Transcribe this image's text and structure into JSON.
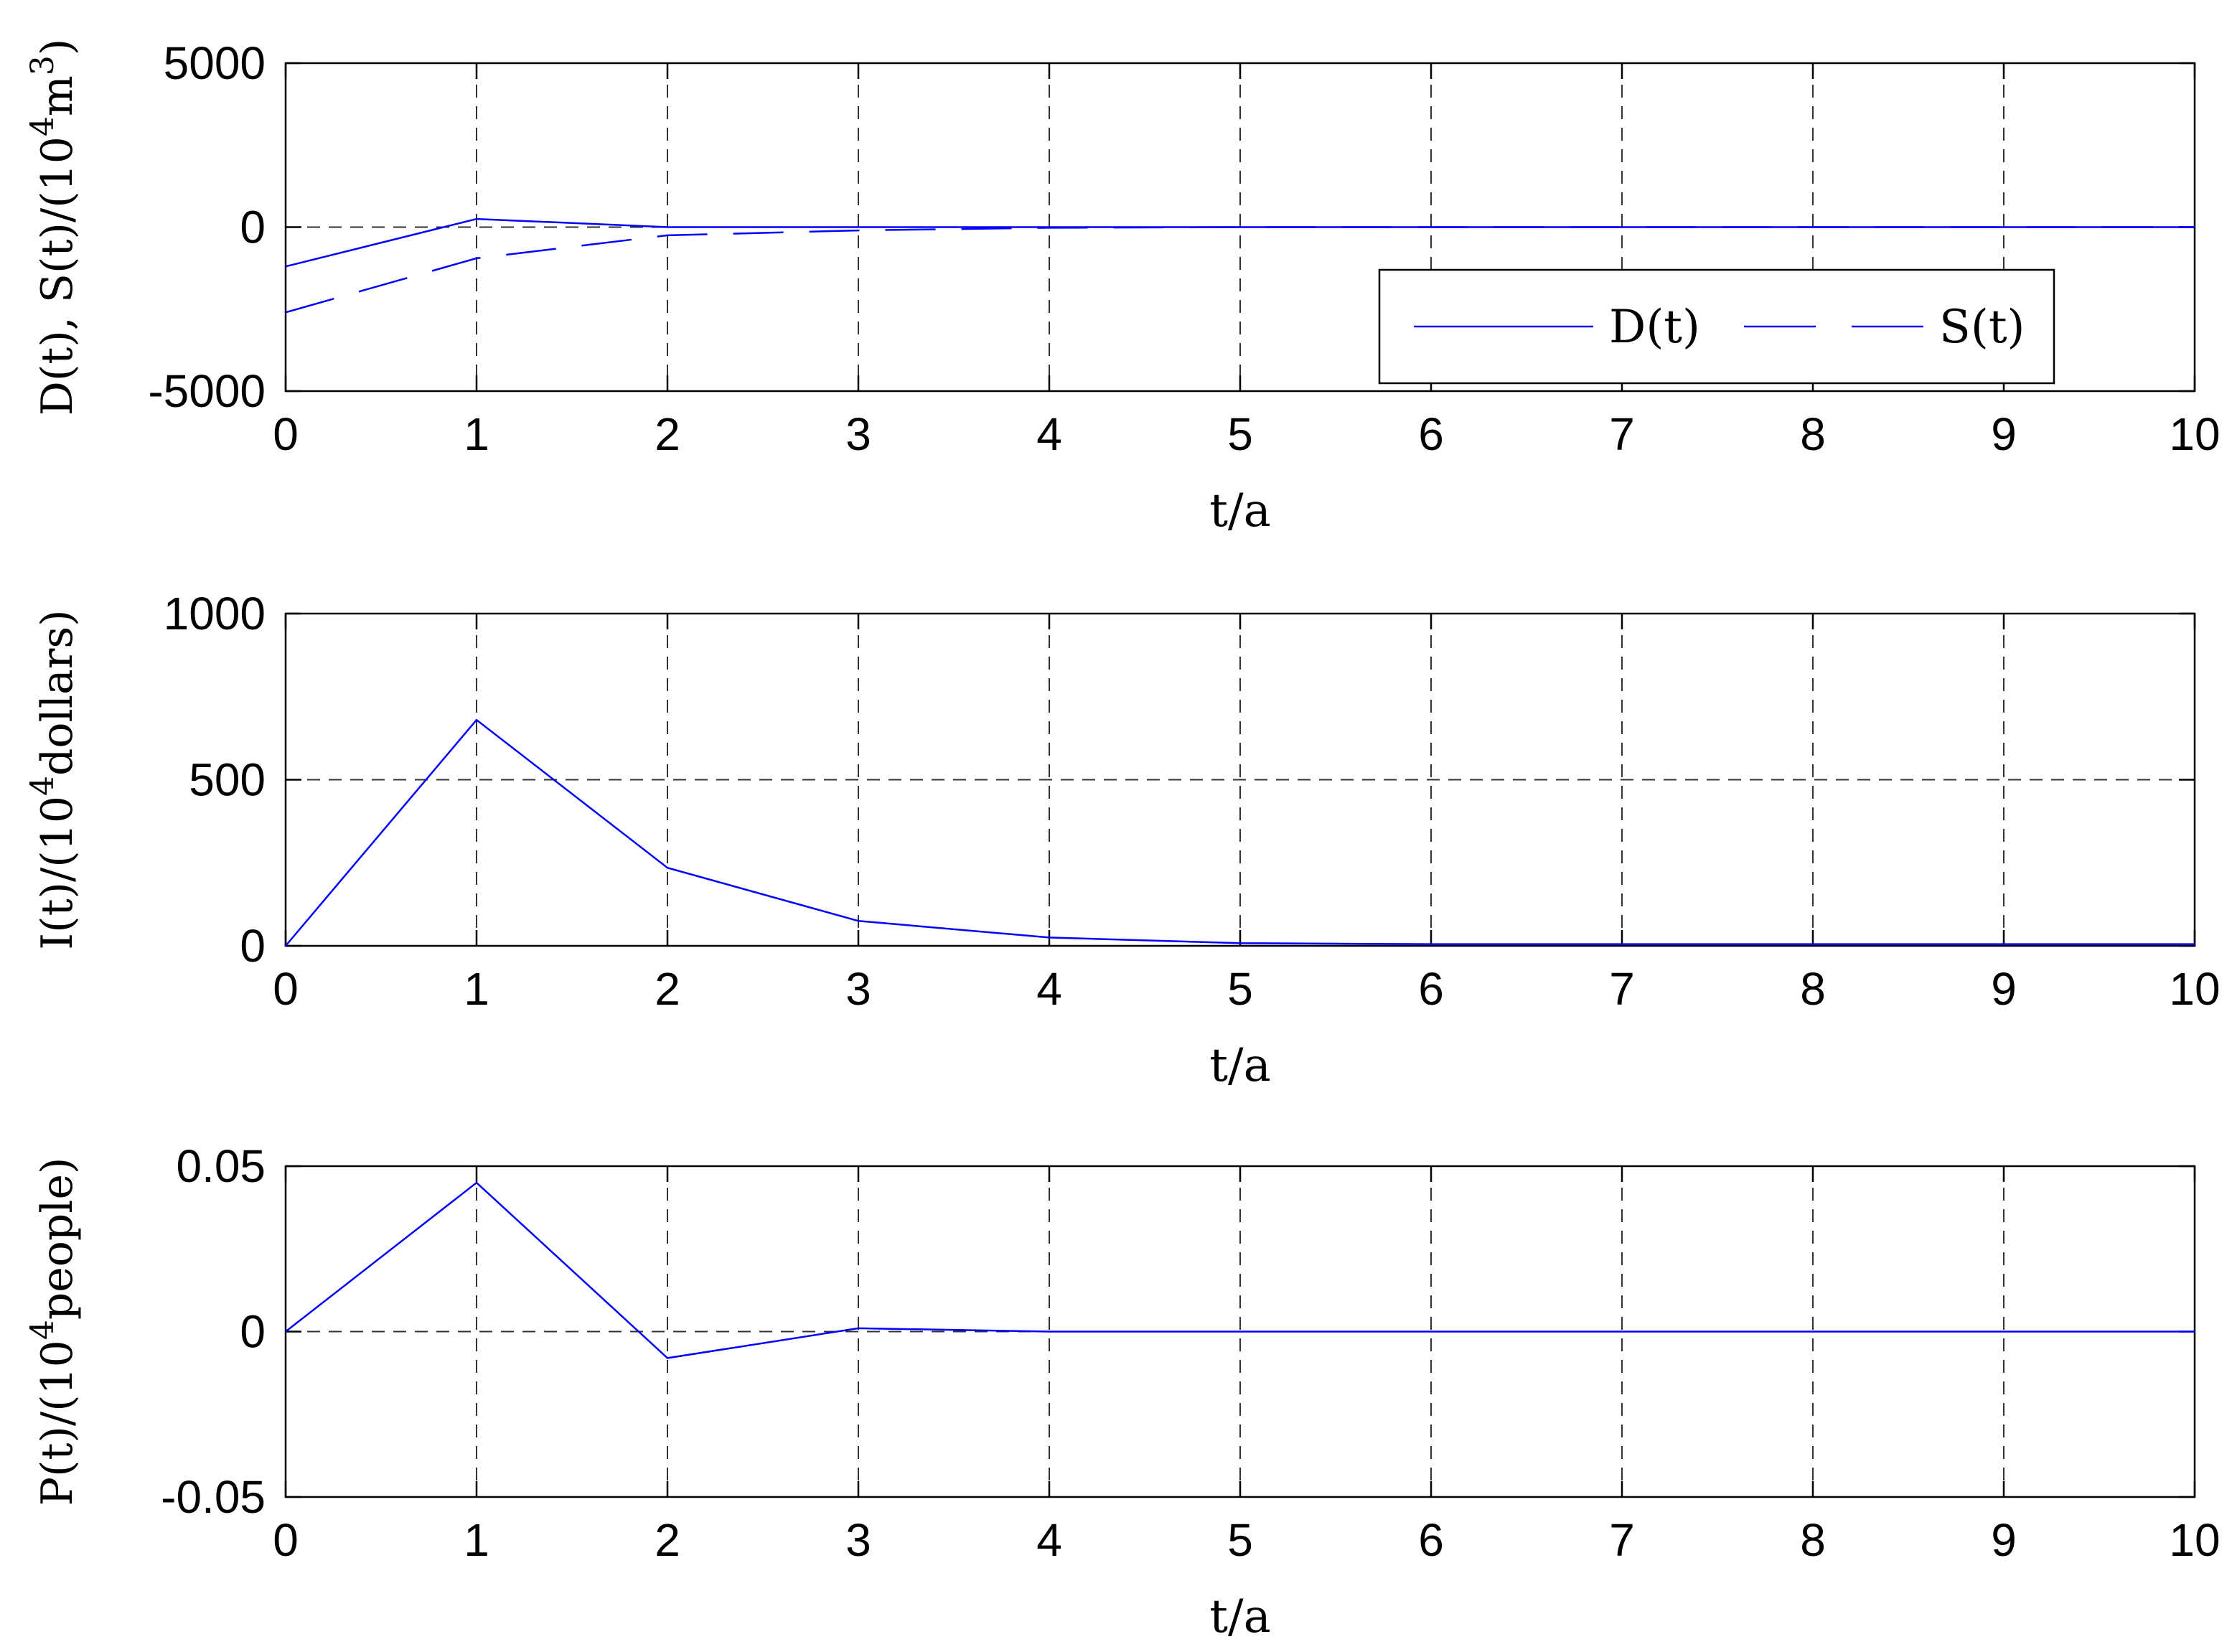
{
  "chart_data": [
    {
      "type": "line",
      "xlabel": "t/a",
      "ylabel": {
        "base": "D(t), S(t)/(10",
        "sup1": "4",
        "mid": "m",
        "sup2": "3",
        "end": ")"
      },
      "xlim": [
        0,
        10
      ],
      "ylim": [
        -5000,
        5000
      ],
      "xticks": [
        "0",
        "1",
        "2",
        "3",
        "4",
        "5",
        "6",
        "7",
        "8",
        "9",
        "10"
      ],
      "yticks": [
        {
          "value": 5000,
          "label": "5000"
        },
        {
          "value": 0,
          "label": "0"
        },
        {
          "value": -5000,
          "label": "-5000"
        }
      ],
      "grid": true,
      "legend": "inside-right",
      "series": [
        {
          "name": "D(t)",
          "style": "solid",
          "x": [
            0,
            1,
            2,
            3,
            4,
            5,
            6,
            7,
            8,
            9,
            10
          ],
          "values": [
            -1200,
            250,
            0,
            0,
            0,
            0,
            0,
            0,
            0,
            0,
            0
          ]
        },
        {
          "name": "S(t)",
          "style": "dashed",
          "x": [
            0,
            1,
            2,
            3,
            4,
            5,
            6,
            7,
            8,
            9,
            10
          ],
          "values": [
            -2600,
            -950,
            -250,
            -100,
            -20,
            0,
            0,
            0,
            0,
            0,
            0
          ]
        }
      ]
    },
    {
      "type": "line",
      "xlabel": "t/a",
      "ylabel": {
        "base": "I(t)/(10",
        "sup1": "4",
        "mid": "dollars)",
        "sup2": "",
        "end": ""
      },
      "xlim": [
        0,
        10
      ],
      "ylim": [
        0,
        1000
      ],
      "xticks": [
        "0",
        "1",
        "2",
        "3",
        "4",
        "5",
        "6",
        "7",
        "8",
        "9",
        "10"
      ],
      "yticks": [
        {
          "value": 1000,
          "label": "1000"
        },
        {
          "value": 500,
          "label": "500"
        },
        {
          "value": 0,
          "label": "0"
        }
      ],
      "grid": true,
      "series": [
        {
          "style": "solid",
          "x": [
            0,
            1,
            2,
            3,
            4,
            5,
            6,
            7,
            8,
            9,
            10
          ],
          "values": [
            0,
            680,
            235,
            75,
            25,
            8,
            5,
            5,
            5,
            5,
            5
          ]
        }
      ]
    },
    {
      "type": "line",
      "xlabel": "t/a",
      "ylabel": {
        "base": "P(t)/(10",
        "sup1": "4",
        "mid": "people)",
        "sup2": "",
        "end": ""
      },
      "xlim": [
        0,
        10
      ],
      "ylim": [
        -0.05,
        0.05
      ],
      "xticks": [
        "0",
        "1",
        "2",
        "3",
        "4",
        "5",
        "6",
        "7",
        "8",
        "9",
        "10"
      ],
      "yticks": [
        {
          "value": 0.05,
          "label": "0.05"
        },
        {
          "value": 0,
          "label": "0"
        },
        {
          "value": -0.05,
          "label": "-0.05"
        }
      ],
      "grid": true,
      "series": [
        {
          "style": "solid",
          "x": [
            0,
            1,
            2,
            3,
            4,
            5,
            6,
            7,
            8,
            9,
            10
          ],
          "values": [
            0,
            0.045,
            -0.008,
            0.001,
            0,
            0,
            0,
            0,
            0,
            0,
            0
          ]
        }
      ]
    }
  ],
  "colors": {
    "series": "#0000ff",
    "grid": "#333333",
    "axis": "#000000"
  }
}
